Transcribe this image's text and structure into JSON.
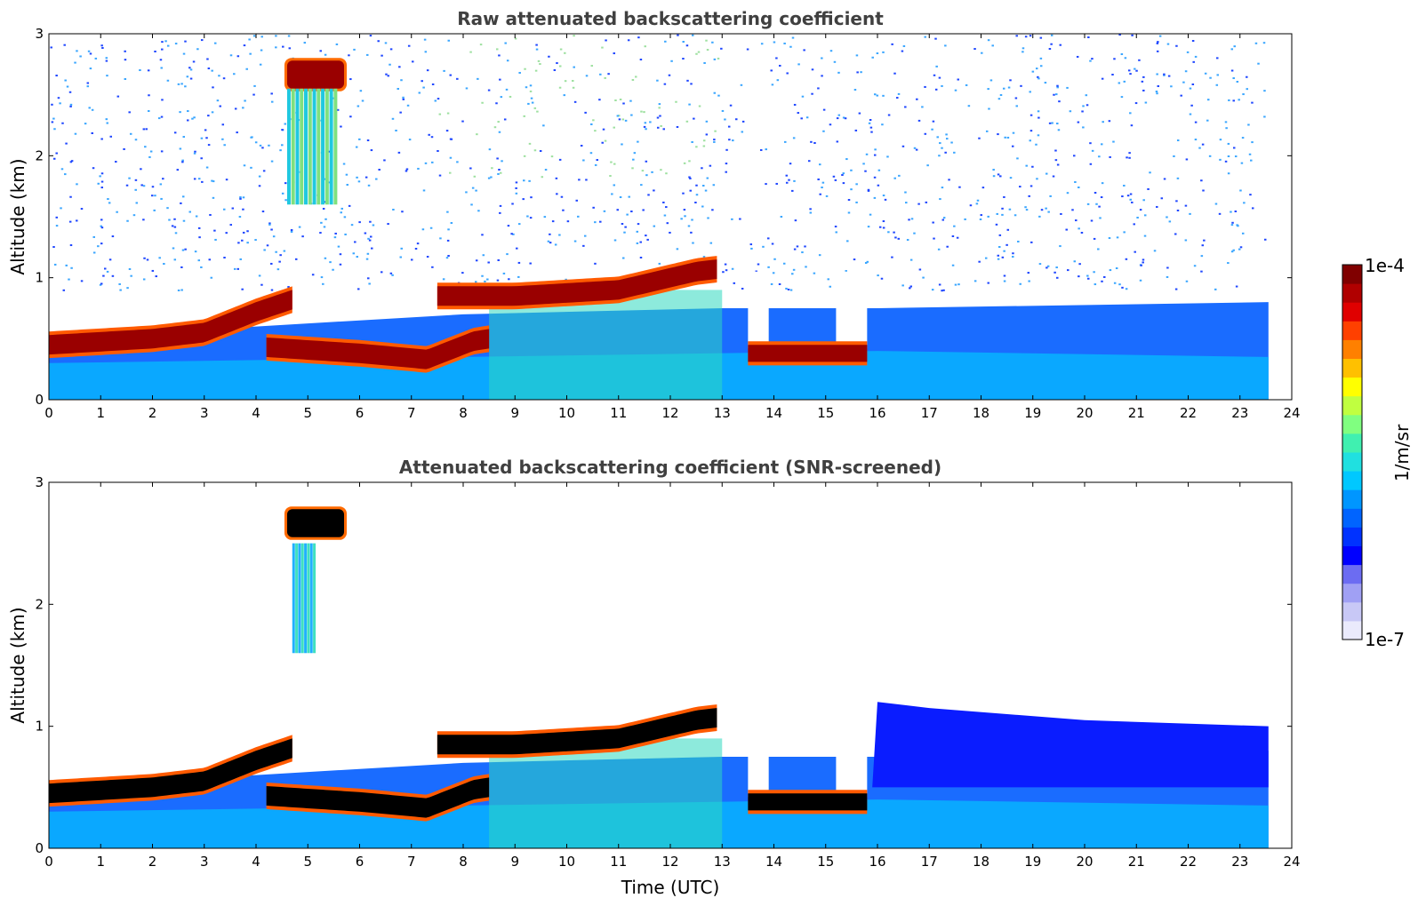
{
  "chart_data": [
    {
      "type": "heatmap",
      "title": "Raw attenuated backscattering coefficient",
      "xlabel": "",
      "ylabel": "Altitude (km)",
      "xlim": [
        0,
        24
      ],
      "ylim": [
        0,
        3
      ],
      "xticks": [
        "0",
        "1",
        "2",
        "3",
        "4",
        "5",
        "6",
        "7",
        "8",
        "9",
        "10",
        "11",
        "12",
        "13",
        "14",
        "15",
        "16",
        "17",
        "18",
        "19",
        "20",
        "21",
        "22",
        "23",
        "24"
      ],
      "yticks": [
        "0",
        "1",
        "2",
        "3"
      ],
      "data_end_hour": 23.55,
      "screened": false,
      "features": [
        {
          "name": "boundary-layer-top",
          "points": [
            [
              0,
              0.45
            ],
            [
              2,
              0.5
            ],
            [
              3,
              0.55
            ],
            [
              4,
              0.72
            ],
            [
              4.7,
              0.82
            ]
          ],
          "intensity": "high"
        },
        {
          "name": "lower-cloud-layer",
          "points": [
            [
              4.2,
              0.43
            ],
            [
              6,
              0.38
            ],
            [
              7.3,
              0.33
            ],
            [
              8.2,
              0.48
            ],
            [
              8.5,
              0.5
            ]
          ],
          "intensity": "high"
        },
        {
          "name": "cloud-top-layer",
          "points": [
            [
              7.5,
              0.85
            ],
            [
              9,
              0.85
            ],
            [
              11,
              0.9
            ],
            [
              12.5,
              1.05
            ],
            [
              12.9,
              1.07
            ]
          ],
          "intensity": "high"
        },
        {
          "name": "high-cloud",
          "x": [
            4.6,
            5.7
          ],
          "y": [
            2.55,
            2.78
          ],
          "intensity": "high"
        },
        {
          "name": "fall-streaks",
          "x": [
            4.6,
            5.5
          ],
          "y": [
            1.6,
            2.55
          ],
          "intensity": "medium"
        },
        {
          "name": "low-cloud-patches",
          "points": [
            [
              13.5,
              0.38
            ],
            [
              14.5,
              0.38
            ],
            [
              15.2,
              0.38
            ],
            [
              15.8,
              0.38
            ]
          ],
          "intensity": "high"
        }
      ]
    },
    {
      "type": "heatmap",
      "title": "Attenuated backscattering coefficient (SNR-screened)",
      "xlabel": "Time (UTC)",
      "ylabel": "Altitude (km)",
      "xlim": [
        0,
        24
      ],
      "ylim": [
        0,
        3
      ],
      "xticks": [
        "0",
        "1",
        "2",
        "3",
        "4",
        "5",
        "6",
        "7",
        "8",
        "9",
        "10",
        "11",
        "12",
        "13",
        "14",
        "15",
        "16",
        "17",
        "18",
        "19",
        "20",
        "21",
        "22",
        "23",
        "24"
      ],
      "yticks": [
        "0",
        "1",
        "2",
        "3"
      ],
      "data_end_hour": 23.55,
      "screened": true,
      "features": [
        {
          "name": "boundary-layer-top",
          "points": [
            [
              0,
              0.45
            ],
            [
              2,
              0.5
            ],
            [
              3,
              0.55
            ],
            [
              4,
              0.72
            ],
            [
              4.7,
              0.82
            ]
          ],
          "intensity": "saturated"
        },
        {
          "name": "lower-cloud-layer",
          "points": [
            [
              4.2,
              0.43
            ],
            [
              6,
              0.38
            ],
            [
              7.3,
              0.33
            ],
            [
              8.2,
              0.48
            ],
            [
              8.5,
              0.5
            ]
          ],
          "intensity": "saturated"
        },
        {
          "name": "cloud-top-layer",
          "points": [
            [
              7.5,
              0.85
            ],
            [
              9,
              0.85
            ],
            [
              11,
              0.9
            ],
            [
              12.5,
              1.05
            ],
            [
              12.9,
              1.07
            ]
          ],
          "intensity": "saturated"
        },
        {
          "name": "high-cloud",
          "x": [
            4.6,
            5.7
          ],
          "y": [
            2.55,
            2.78
          ],
          "intensity": "saturated"
        },
        {
          "name": "low-cloud-patches",
          "points": [
            [
              13.5,
              0.38
            ],
            [
              14.5,
              0.38
            ],
            [
              15.2,
              0.38
            ],
            [
              15.8,
              0.38
            ]
          ],
          "intensity": "saturated"
        }
      ]
    }
  ],
  "colorbar": {
    "label": "1/m/sr",
    "max_label": "1e-4",
    "min_label": "1e-7",
    "colors": [
      "#eaeafc",
      "#c8c8f6",
      "#a0a0f4",
      "#6c6cf2",
      "#0000ff",
      "#0032ff",
      "#0064ff",
      "#0096ff",
      "#00c8ff",
      "#20e0e0",
      "#40f0b0",
      "#80ff80",
      "#c0ff40",
      "#ffff00",
      "#ffc000",
      "#ff8000",
      "#ff4000",
      "#e00000",
      "#b00000",
      "#800000"
    ]
  }
}
